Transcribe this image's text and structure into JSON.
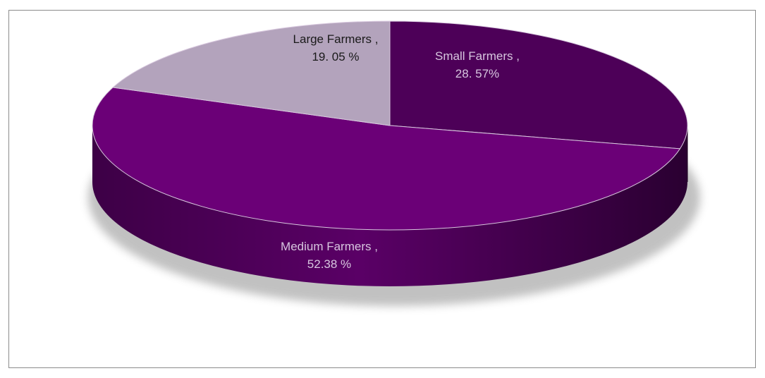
{
  "chart_data": {
    "type": "pie",
    "three_d": true,
    "title": "",
    "categories": [
      "Small Farmers",
      "Medium Farmers",
      "Large Farmers"
    ],
    "values": [
      28.57,
      52.38,
      19.05
    ],
    "colors": {
      "Small Farmers": "#4d0058",
      "Medium Farmers": "#6b0077",
      "Large Farmers": "#b3a3bc"
    },
    "data_labels": [
      {
        "category": "Small Farmers",
        "line1": "Small Farmers ,",
        "line2": "28. 57%",
        "color": "#d7c6df"
      },
      {
        "category": "Medium Farmers",
        "line1": "Medium Farmers ,",
        "line2": "52.38 %",
        "color": "#d7c6df"
      },
      {
        "category": "Large Farmers",
        "line1": "Large Farmers ,",
        "line2": "19. 05 %",
        "color": "#1a1a1a"
      }
    ],
    "legend": "none",
    "grid": false
  }
}
